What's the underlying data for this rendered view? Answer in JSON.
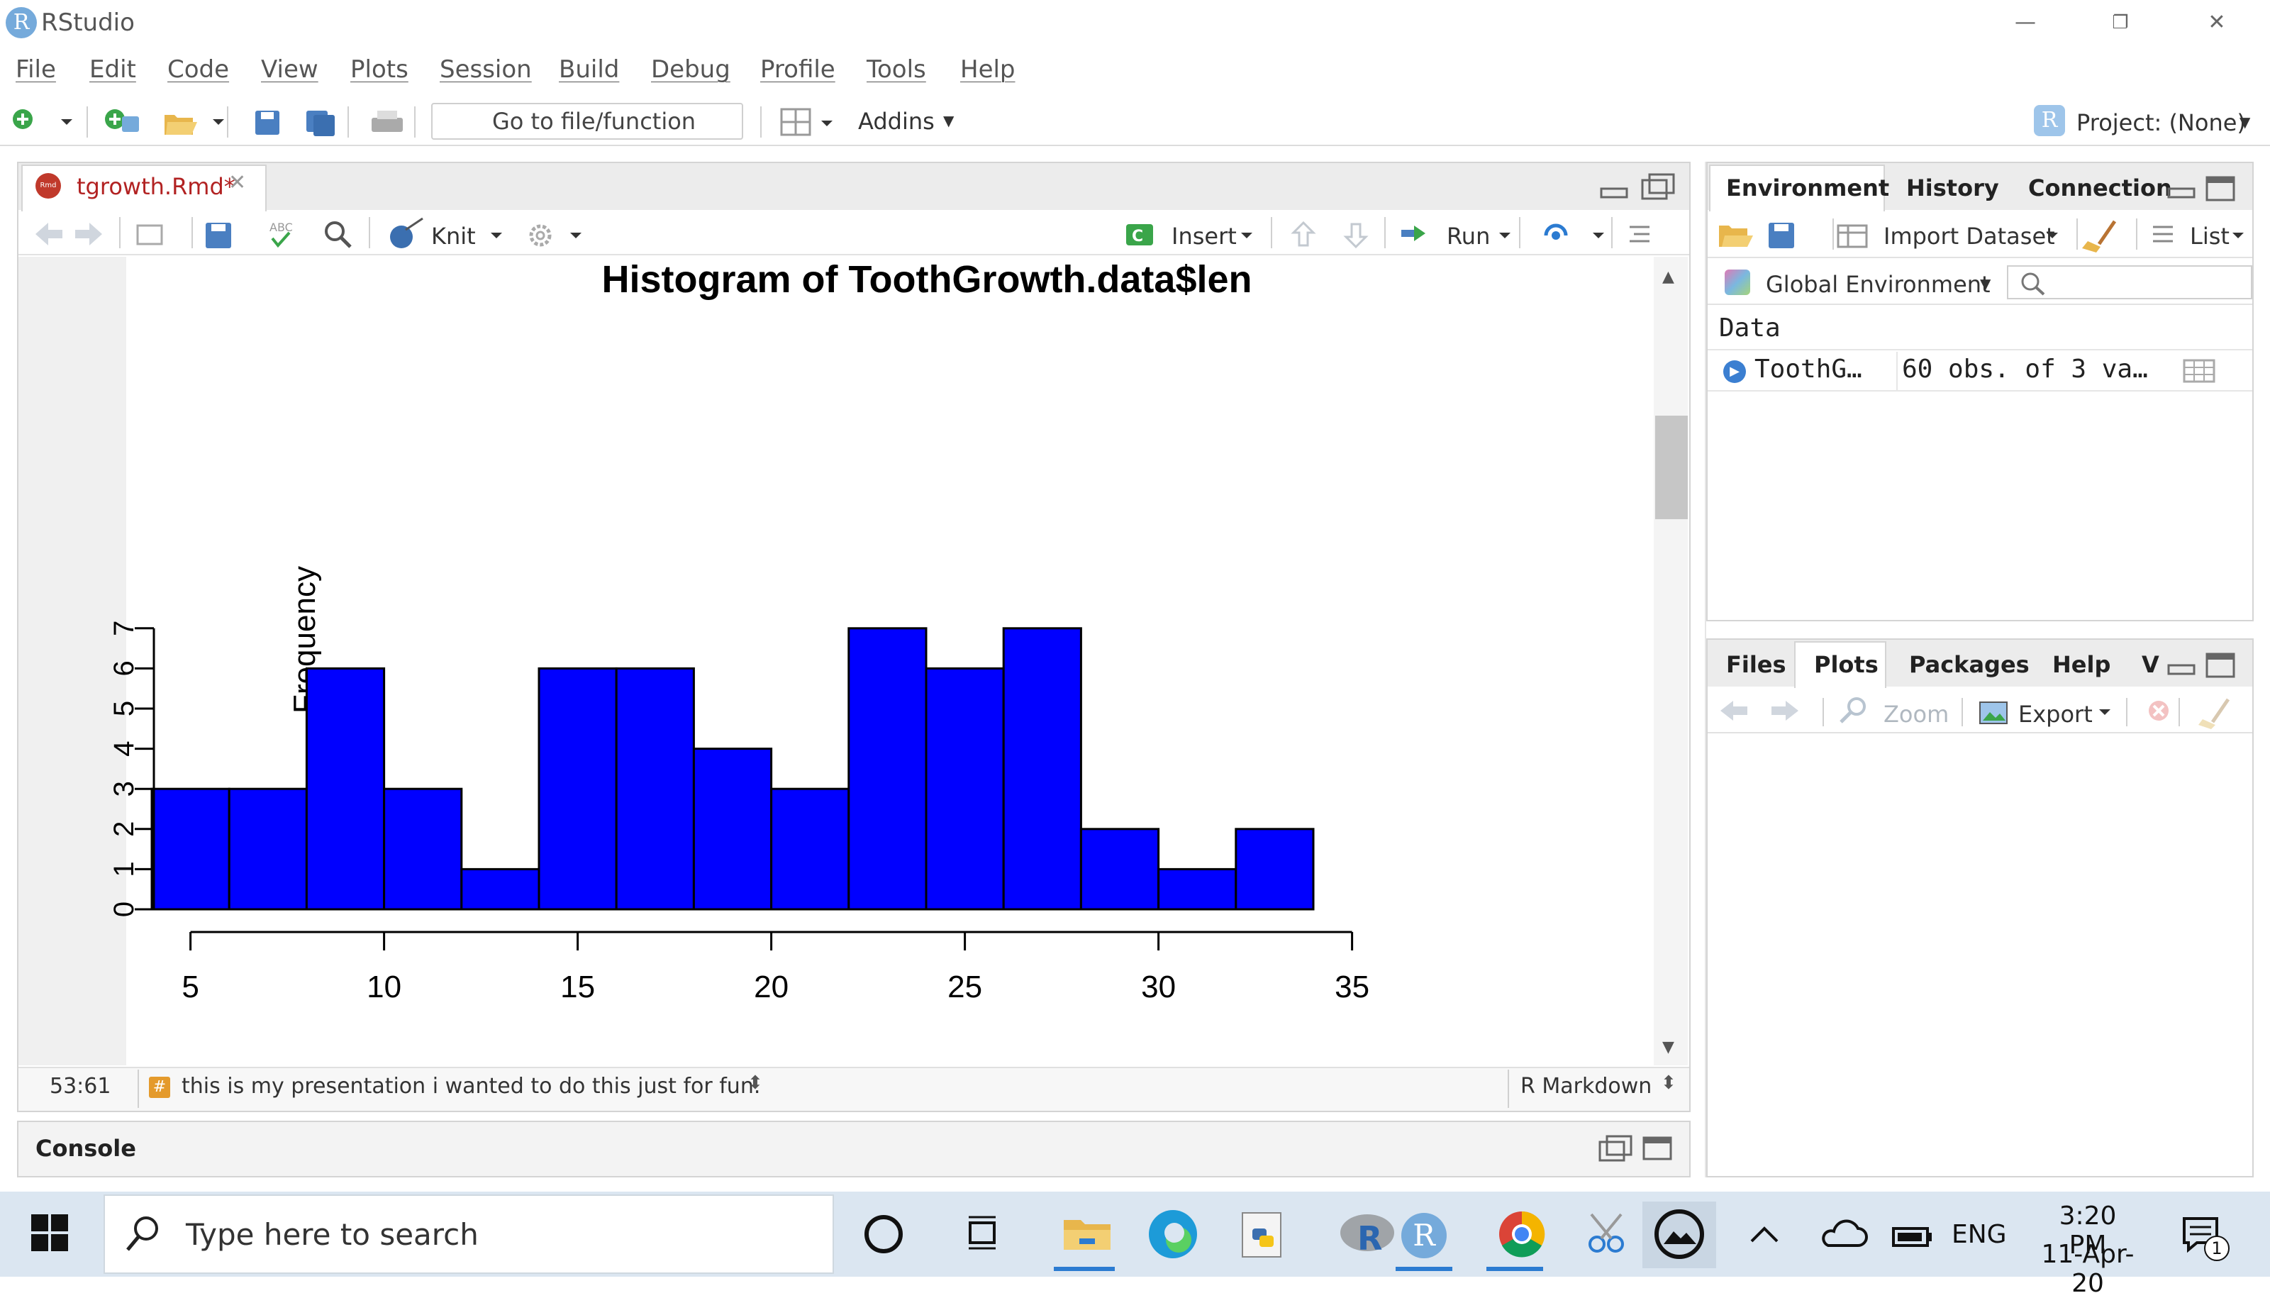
{
  "window": {
    "title": "RStudio",
    "logo_letter": "R",
    "controls": [
      "—",
      "❐",
      "✕"
    ]
  },
  "menu": [
    "File",
    "Edit",
    "Code",
    "View",
    "Plots",
    "Session",
    "Build",
    "Debug",
    "Profile",
    "Tools",
    "Help"
  ],
  "toolbar": {
    "goto_placeholder": "Go to file/function",
    "addins_label": "Addins",
    "project_label": "Project: (None)"
  },
  "editor": {
    "tab_label": "tgrowth.Rmd*",
    "knit_label": "Knit",
    "insert_label": "Insert",
    "run_label": "Run",
    "status_position": "53:61",
    "status_chunk": "this is my presentation i wanted to do this just for fun.",
    "status_mode": "R Markdown"
  },
  "console": {
    "label": "Console"
  },
  "environment_pane": {
    "tabs": [
      "Environment",
      "History",
      "Connection"
    ],
    "import_label": "Import Dataset",
    "list_label": "List",
    "scope_label": "Global Environment",
    "section_label": "Data",
    "rows": [
      {
        "name": "ToothG…",
        "value": "60 obs. of 3 va…"
      }
    ]
  },
  "files_pane": {
    "tabs": [
      "Files",
      "Plots",
      "Packages",
      "Help",
      "V"
    ],
    "zoom_label": "Zoom",
    "export_label": "Export"
  },
  "taskbar": {
    "search_placeholder": "Type here to search",
    "language": "ENG",
    "time": "3:20 PM",
    "date": "11-Apr-20",
    "notification_count": "1"
  },
  "chart_data": {
    "type": "bar",
    "title": "Histogram of ToothGrowth.data$len",
    "xlabel": "",
    "ylabel": "Frequency",
    "bin_edges": [
      4,
      6,
      8,
      10,
      12,
      14,
      16,
      18,
      20,
      22,
      24,
      26,
      28,
      30,
      32,
      34
    ],
    "values": [
      3,
      3,
      6,
      3,
      1,
      6,
      6,
      4,
      3,
      7,
      6,
      7,
      2,
      1,
      2
    ],
    "xlim": [
      5,
      35
    ],
    "x_ticks": [
      "5",
      "10",
      "15",
      "20",
      "25",
      "30",
      "35"
    ],
    "ylim": [
      0,
      7
    ],
    "y_ticks": [
      "0",
      "1",
      "2",
      "3",
      "4",
      "5",
      "6",
      "7"
    ],
    "bar_color": "#0000ff",
    "grid": false
  }
}
